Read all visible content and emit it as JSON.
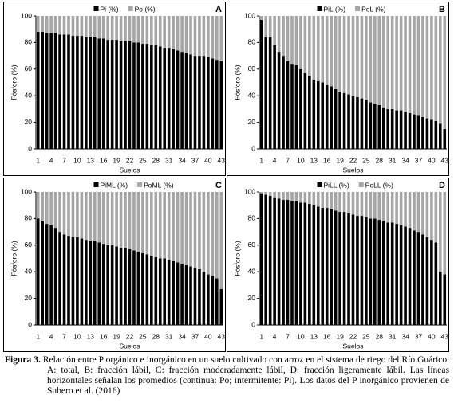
{
  "chart_data": [
    {
      "type": "bar",
      "stacked": true,
      "panel": "A",
      "ylabel": "Fósforo (%)",
      "xlabel": "Suelos",
      "categories": [
        "1",
        null,
        null,
        "4",
        null,
        null,
        "7",
        null,
        null,
        "10",
        null,
        null,
        "13",
        null,
        null,
        "16",
        null,
        null,
        "19",
        null,
        null,
        "22",
        null,
        null,
        "25",
        null,
        null,
        "28",
        null,
        null,
        "31",
        null,
        null,
        "34",
        null,
        null,
        "37",
        null,
        null,
        "40",
        null,
        null,
        "43"
      ],
      "ylim": [
        0,
        100
      ],
      "yticks": [
        0,
        20,
        40,
        60,
        80,
        100
      ],
      "series": [
        {
          "name": "Pi (%)",
          "color": "#000000",
          "values": [
            88,
            88,
            87,
            87,
            87,
            86,
            86,
            86,
            85,
            85,
            85,
            84,
            84,
            84,
            83,
            83,
            82,
            82,
            82,
            81,
            81,
            81,
            80,
            80,
            79,
            79,
            78,
            78,
            77,
            76,
            76,
            75,
            74,
            73,
            72,
            71,
            70,
            70,
            70,
            69,
            68,
            67,
            66
          ]
        },
        {
          "name": "Po (%)",
          "color": "#a6a6a6",
          "values": [
            12,
            12,
            13,
            13,
            13,
            14,
            14,
            14,
            15,
            15,
            15,
            16,
            16,
            16,
            17,
            17,
            18,
            18,
            18,
            19,
            19,
            19,
            20,
            20,
            21,
            21,
            22,
            22,
            23,
            24,
            24,
            25,
            26,
            27,
            28,
            29,
            30,
            30,
            30,
            31,
            32,
            33,
            34
          ]
        }
      ]
    },
    {
      "type": "bar",
      "stacked": true,
      "panel": "B",
      "ylabel": "Fósforo (%)",
      "xlabel": "Suelos",
      "categories": [
        "1",
        null,
        null,
        "4",
        null,
        null,
        "7",
        null,
        null,
        "10",
        null,
        null,
        "13",
        null,
        null,
        "16",
        null,
        null,
        "19",
        null,
        null,
        "22",
        null,
        null,
        "25",
        null,
        null,
        "28",
        null,
        null,
        "31",
        null,
        null,
        "34",
        null,
        null,
        "37",
        null,
        null,
        "40",
        null,
        null,
        "43"
      ],
      "ylim": [
        0,
        100
      ],
      "yticks": [
        0,
        20,
        40,
        60,
        80,
        100
      ],
      "series": [
        {
          "name": "PiL (%)",
          "color": "#000000",
          "values": [
            97,
            84,
            84,
            78,
            73,
            70,
            66,
            64,
            63,
            60,
            57,
            55,
            52,
            51,
            50,
            48,
            47,
            45,
            43,
            42,
            41,
            40,
            39,
            38,
            37,
            35,
            34,
            33,
            31,
            30,
            30,
            29,
            29,
            28,
            27,
            26,
            25,
            24,
            23,
            22,
            21,
            19,
            15
          ]
        },
        {
          "name": "PoL (%)",
          "color": "#a6a6a6",
          "values": [
            3,
            16,
            16,
            22,
            27,
            30,
            34,
            36,
            37,
            40,
            43,
            45,
            48,
            49,
            50,
            52,
            53,
            55,
            57,
            58,
            59,
            60,
            61,
            62,
            63,
            65,
            66,
            67,
            69,
            70,
            70,
            71,
            71,
            72,
            73,
            74,
            75,
            76,
            77,
            78,
            79,
            81,
            85
          ]
        }
      ]
    },
    {
      "type": "bar",
      "stacked": true,
      "panel": "C",
      "ylabel": "Fósforo (%)",
      "xlabel": "Suelos",
      "categories": [
        "1",
        null,
        null,
        "4",
        null,
        null,
        "7",
        null,
        null,
        "10",
        null,
        null,
        "13",
        null,
        null,
        "16",
        null,
        null,
        "19",
        null,
        null,
        "22",
        null,
        null,
        "25",
        null,
        null,
        "28",
        null,
        null,
        "31",
        null,
        null,
        "34",
        null,
        null,
        "37",
        null,
        null,
        "40",
        null,
        null,
        "43"
      ],
      "ylim": [
        0,
        100
      ],
      "yticks": [
        0,
        20,
        40,
        60,
        80,
        100
      ],
      "series": [
        {
          "name": "PiML (%)",
          "color": "#000000",
          "values": [
            80,
            78,
            76,
            75,
            73,
            70,
            68,
            67,
            66,
            66,
            65,
            64,
            63,
            63,
            62,
            61,
            60,
            60,
            59,
            58,
            58,
            57,
            56,
            55,
            54,
            53,
            52,
            51,
            50,
            50,
            49,
            48,
            47,
            46,
            45,
            44,
            43,
            42,
            40,
            38,
            37,
            35,
            27
          ]
        },
        {
          "name": "PoML (%)",
          "color": "#a6a6a6",
          "values": [
            20,
            22,
            24,
            25,
            27,
            30,
            32,
            33,
            34,
            34,
            35,
            36,
            37,
            37,
            38,
            39,
            40,
            40,
            41,
            42,
            42,
            43,
            44,
            45,
            46,
            47,
            48,
            49,
            50,
            50,
            51,
            52,
            53,
            54,
            55,
            56,
            57,
            58,
            60,
            62,
            63,
            65,
            73
          ]
        }
      ]
    },
    {
      "type": "bar",
      "stacked": true,
      "panel": "D",
      "ylabel": "Fósforo (%)",
      "xlabel": "Suelos",
      "categories": [
        "1",
        null,
        null,
        "4",
        null,
        null,
        "7",
        null,
        null,
        "10",
        null,
        null,
        "13",
        null,
        null,
        "16",
        null,
        null,
        "19",
        null,
        null,
        "22",
        null,
        null,
        "25",
        null,
        null,
        "28",
        null,
        null,
        "31",
        null,
        null,
        "34",
        null,
        null,
        "37",
        null,
        null,
        "40",
        null,
        null,
        "43"
      ],
      "ylim": [
        0,
        100
      ],
      "yticks": [
        0,
        20,
        40,
        60,
        80,
        100
      ],
      "series": [
        {
          "name": "PiLL (%)",
          "color": "#000000",
          "values": [
            99,
            98,
            97,
            96,
            95,
            94,
            94,
            93,
            93,
            92,
            92,
            91,
            90,
            89,
            88,
            88,
            87,
            86,
            85,
            85,
            84,
            83,
            82,
            82,
            81,
            80,
            80,
            79,
            78,
            77,
            77,
            76,
            75,
            74,
            73,
            71,
            70,
            68,
            66,
            64,
            62,
            40,
            38
          ]
        },
        {
          "name": "PoLL (%)",
          "color": "#a6a6a6",
          "values": [
            1,
            2,
            3,
            4,
            5,
            6,
            6,
            7,
            7,
            8,
            8,
            9,
            10,
            11,
            12,
            12,
            13,
            14,
            15,
            15,
            16,
            17,
            18,
            18,
            19,
            20,
            20,
            21,
            22,
            23,
            23,
            24,
            25,
            26,
            27,
            29,
            30,
            32,
            34,
            36,
            38,
            60,
            62
          ]
        }
      ]
    }
  ],
  "caption": {
    "label": "Figura 3.",
    "text": "Relación entre P orgánico e inorgánico en un suelo cultivado con arroz en el sistema de riego del Río Guárico. A: total, B: fracción lábil, C: fracción moderadamente lábil, D: fracción ligeramente lábil. Las líneas horizontales señalan los promedios (continua: Po; intermitente: Pi). Los datos del P inorgánico provienen de Subero et al. (2016)"
  }
}
